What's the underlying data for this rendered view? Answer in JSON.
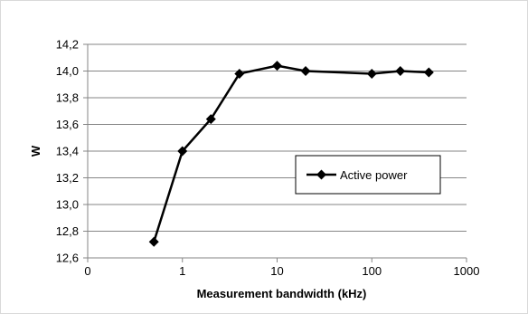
{
  "chart_data": {
    "type": "line",
    "xlabel": "Measurement bandwidth (kHz)",
    "ylabel": "W",
    "x_scale": "log",
    "x_tick_labels": [
      "0",
      "1",
      "10",
      "100",
      "1000"
    ],
    "y_tick_labels": [
      "12,6",
      "12,8",
      "13,0",
      "13,2",
      "13,4",
      "13,6",
      "13,8",
      "14,0",
      "14,2"
    ],
    "ylim": [
      12.6,
      14.2
    ],
    "grid": "horizontal",
    "legend_position": "right-middle",
    "series": [
      {
        "name": "Active power",
        "color": "#000000",
        "marker": "diamond",
        "points": [
          {
            "x": 0.5,
            "y": 12.72
          },
          {
            "x": 1,
            "y": 13.4
          },
          {
            "x": 2,
            "y": 13.64
          },
          {
            "x": 4,
            "y": 13.98
          },
          {
            "x": 10,
            "y": 14.04
          },
          {
            "x": 20,
            "y": 14.0
          },
          {
            "x": 100,
            "y": 13.98
          },
          {
            "x": 200,
            "y": 14.0
          },
          {
            "x": 400,
            "y": 13.99
          }
        ]
      }
    ]
  }
}
